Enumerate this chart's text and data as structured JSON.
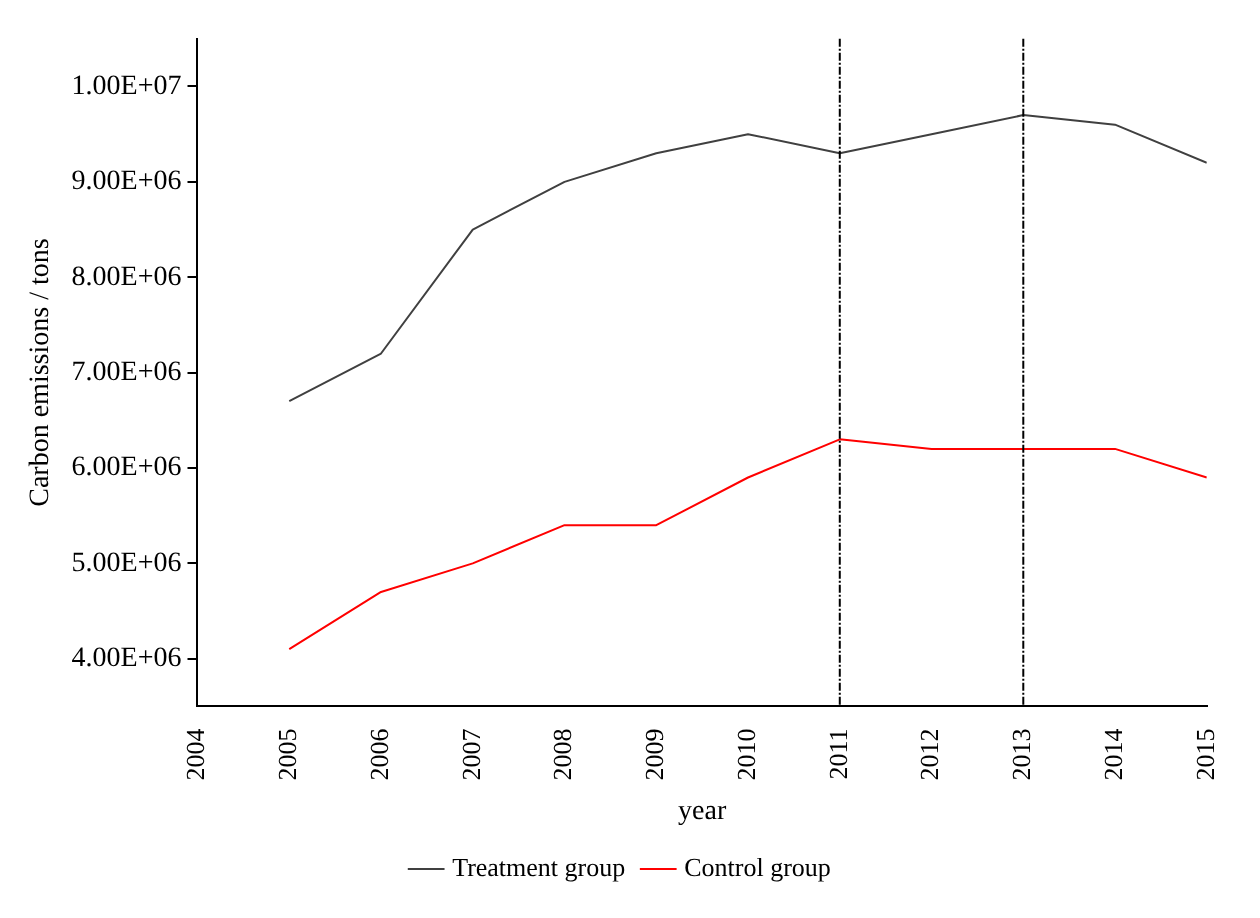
{
  "chart_data": {
    "type": "line",
    "xlabel": "year",
    "ylabel": "Carbon emissions / tons",
    "x": [
      2005,
      2006,
      2007,
      2008,
      2009,
      2010,
      2011,
      2012,
      2013,
      2014,
      2015
    ],
    "series": [
      {
        "name": "Treatment group",
        "color": "#404040",
        "values": [
          6700000,
          7200000,
          8500000,
          9000000,
          9300000,
          9500000,
          9300000,
          9500000,
          9700000,
          9600000,
          9200000
        ]
      },
      {
        "name": "Control group",
        "color": "#ff0000",
        "values": [
          4100000,
          4700000,
          5000000,
          5400000,
          5400000,
          5900000,
          6300000,
          6200000,
          6200000,
          6200000,
          5900000
        ]
      }
    ],
    "xlim": [
      2004,
      2015
    ],
    "xticks": [
      2004,
      2005,
      2006,
      2007,
      2008,
      2009,
      2010,
      2011,
      2012,
      2013,
      2014,
      2015
    ],
    "ylim": [
      3500000,
      10500000
    ],
    "yticks": [
      {
        "value": 4000000,
        "label": "4.00E+06"
      },
      {
        "value": 5000000,
        "label": "5.00E+06"
      },
      {
        "value": 6000000,
        "label": "6.00E+06"
      },
      {
        "value": 7000000,
        "label": "7.00E+06"
      },
      {
        "value": 8000000,
        "label": "8.00E+06"
      },
      {
        "value": 9000000,
        "label": "9.00E+06"
      },
      {
        "value": 10000000,
        "label": "1.00E+07"
      }
    ],
    "ref_lines": [
      {
        "axis": "x",
        "value": 2011,
        "color": "#000000",
        "line_style": "dashed"
      },
      {
        "axis": "x",
        "value": 2013,
        "color": "#000000",
        "line_style": "dashed"
      }
    ],
    "grid": false,
    "legend": "bottom",
    "marker": "none",
    "line_style": "solid"
  }
}
